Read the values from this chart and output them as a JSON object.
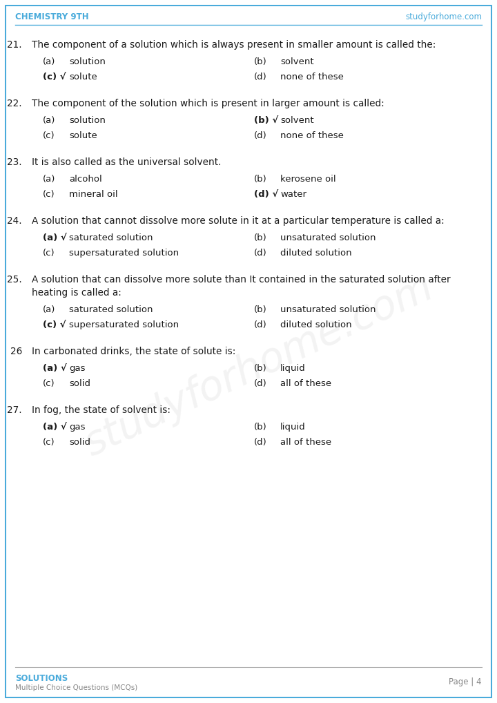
{
  "header_left": "CHEMISTRY 9TH",
  "header_right": "studyforhome.com",
  "header_color": "#4AABDB",
  "footer_left_title": "SOLUTIONS",
  "footer_left_sub": "Multiple Choice Questions (MCQs)",
  "footer_right": "Page | 4",
  "footer_color": "#4AABDB",
  "bg_color": "#FFFFFF",
  "border_color": "#4AABDB",
  "text_color": "#1a1a1a",
  "questions": [
    {
      "num": "21.",
      "question": "The component of a solution which is always present in smaller amount is called the:",
      "options": [
        {
          "label": "(a)",
          "text": "solution",
          "correct": false
        },
        {
          "label": "(b)",
          "text": "solvent",
          "correct": false
        },
        {
          "label": "(c)",
          "text": "solute",
          "correct": true
        },
        {
          "label": "(d)",
          "text": "none of these",
          "correct": false
        }
      ]
    },
    {
      "num": "22.",
      "question": "The component of the solution which is present in larger amount is called:",
      "options": [
        {
          "label": "(a)",
          "text": "solution",
          "correct": false
        },
        {
          "label": "(b)",
          "text": "solvent",
          "correct": true
        },
        {
          "label": "(c)",
          "text": "solute",
          "correct": false
        },
        {
          "label": "(d)",
          "text": "none of these",
          "correct": false
        }
      ]
    },
    {
      "num": "23.",
      "question": "It is also called as the universal solvent.",
      "options": [
        {
          "label": "(a)",
          "text": "alcohol",
          "correct": false
        },
        {
          "label": "(b)",
          "text": "kerosene oil",
          "correct": false
        },
        {
          "label": "(c)",
          "text": "mineral oil",
          "correct": false
        },
        {
          "label": "(d)",
          "text": "water",
          "correct": true
        }
      ]
    },
    {
      "num": "24.",
      "question": "A solution that cannot dissolve more solute in it at a particular temperature is called a:",
      "options": [
        {
          "label": "(a)",
          "text": "saturated solution",
          "correct": true
        },
        {
          "label": "(b)",
          "text": "unsaturated solution",
          "correct": false
        },
        {
          "label": "(c)",
          "text": "supersaturated solution",
          "correct": false
        },
        {
          "label": "(d)",
          "text": "diluted solution",
          "correct": false
        }
      ]
    },
    {
      "num": "25.",
      "question": "A solution that can dissolve more solute than It contained in the saturated solution after\nheating is called a:",
      "options": [
        {
          "label": "(a)",
          "text": "saturated solution",
          "correct": false
        },
        {
          "label": "(b)",
          "text": "unsaturated solution",
          "correct": false
        },
        {
          "label": "(c)",
          "text": "supersaturated solution",
          "correct": true
        },
        {
          "label": "(d)",
          "text": "diluted solution",
          "correct": false
        }
      ]
    },
    {
      "num": "26",
      "question": "In carbonated drinks, the state of solute is:",
      "options": [
        {
          "label": "(a)",
          "text": "gas",
          "correct": true
        },
        {
          "label": "(b)",
          "text": "liquid",
          "correct": false
        },
        {
          "label": "(c)",
          "text": "solid",
          "correct": false
        },
        {
          "label": "(d)",
          "text": "all of these",
          "correct": false
        }
      ]
    },
    {
      "num": "27.",
      "question": "In fog, the state of solvent is:",
      "options": [
        {
          "label": "(a)",
          "text": "gas",
          "correct": true
        },
        {
          "label": "(b)",
          "text": "liquid",
          "correct": false
        },
        {
          "label": "(c)",
          "text": "solid",
          "correct": false
        },
        {
          "label": "(d)",
          "text": "all of these",
          "correct": false
        }
      ]
    }
  ],
  "watermark_text": "studyforhome.com"
}
